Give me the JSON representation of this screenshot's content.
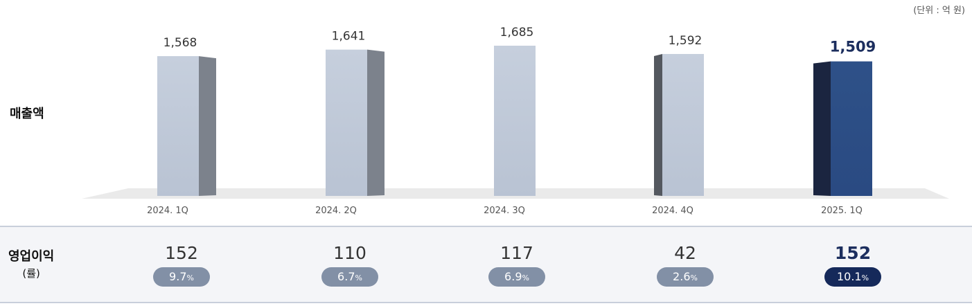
{
  "unit_label": "(단위 : 억 원)",
  "revenue_label": "매출액",
  "op_profit": {
    "label": "영업이익",
    "sub_label": "(률)",
    "values": [
      "152",
      "110",
      "117",
      "42",
      "152"
    ],
    "rates": [
      "9.7",
      "6.7",
      "6.9",
      "2.6",
      "10.1"
    ],
    "rate_suffix": "%"
  },
  "colors": {
    "bar_normal": "#b9c3d3",
    "bar_highlight": "#2a4a82",
    "text_highlight": "#1c2e5e",
    "badge_normal": "#8290a6",
    "badge_highlight": "#15295a"
  },
  "chart_data": {
    "type": "bar",
    "categories": [
      "2024. 1Q",
      "2024. 2Q",
      "2024. 3Q",
      "2024. 4Q",
      "2025. 1Q"
    ],
    "values": [
      1568,
      1641,
      1685,
      1592,
      1509
    ],
    "value_labels": [
      "1,568",
      "1,641",
      "1,685",
      "1,592",
      "1,509"
    ],
    "highlight_index": 4,
    "ylim": [
      0,
      1685
    ]
  }
}
